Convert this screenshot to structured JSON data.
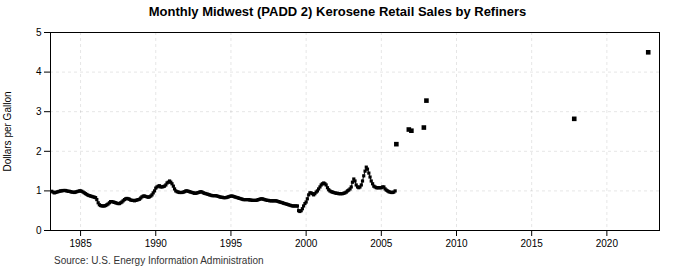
{
  "chart_data": {
    "type": "line",
    "title": "Monthly Midwest (PADD 2) Kerosene Retail Sales by Refiners",
    "ylabel": "Dollars per Gallon",
    "annotation": "Source: U.S. Energy Information Administration",
    "xlim": [
      1983.0,
      2023.5
    ],
    "ylim": [
      0,
      5
    ],
    "xticks": [
      1985,
      1990,
      1995,
      2000,
      2005,
      2010,
      2015,
      2020
    ],
    "yticks": [
      0,
      1,
      2,
      3,
      4,
      5
    ],
    "grid": true,
    "series": [
      {
        "type": "line",
        "marker": "square",
        "line_style": "solid",
        "x": [
          1983.08,
          1983.17,
          1983.25,
          1983.33,
          1983.42,
          1983.5,
          1983.58,
          1983.67,
          1983.75,
          1983.83,
          1983.92,
          1984.0,
          1984.08,
          1984.17,
          1984.25,
          1984.33,
          1984.42,
          1984.5,
          1984.58,
          1984.67,
          1984.75,
          1984.83,
          1984.92,
          1985.0,
          1985.08,
          1985.17,
          1985.25,
          1985.33,
          1985.42,
          1985.5,
          1985.58,
          1985.67,
          1985.75,
          1985.83,
          1985.92,
          1986.0,
          1986.08,
          1986.17,
          1986.25,
          1986.33,
          1986.42,
          1986.5,
          1986.58,
          1986.67,
          1986.75,
          1986.83,
          1986.92,
          1987.0,
          1987.08,
          1987.17,
          1987.25,
          1987.33,
          1987.42,
          1987.5,
          1987.58,
          1987.67,
          1987.75,
          1987.83,
          1987.92,
          1988.0,
          1988.08,
          1988.17,
          1988.25,
          1988.33,
          1988.42,
          1988.5,
          1988.58,
          1988.67,
          1988.75,
          1988.83,
          1988.92,
          1989.0,
          1989.08,
          1989.17,
          1989.25,
          1989.33,
          1989.42,
          1989.5,
          1989.58,
          1989.67,
          1989.75,
          1989.83,
          1989.92,
          1990.0,
          1990.08,
          1990.17,
          1990.25,
          1990.33,
          1990.42,
          1990.5,
          1990.58,
          1990.67,
          1990.75,
          1990.83,
          1990.92,
          1991.0,
          1991.08,
          1991.17,
          1991.25,
          1991.33,
          1991.42,
          1991.5,
          1991.58,
          1991.67,
          1991.75,
          1991.83,
          1991.92,
          1992.0,
          1992.08,
          1992.17,
          1992.25,
          1992.33,
          1992.42,
          1992.5,
          1992.58,
          1992.67,
          1992.75,
          1992.83,
          1992.92,
          1993.0,
          1993.08,
          1993.17,
          1993.25,
          1993.33,
          1993.42,
          1993.5,
          1993.58,
          1993.67,
          1993.75,
          1993.83,
          1993.92,
          1994.0,
          1994.08,
          1994.17,
          1994.25,
          1994.33,
          1994.42,
          1994.5,
          1994.58,
          1994.67,
          1994.75,
          1994.83,
          1994.92,
          1995.0,
          1995.08,
          1995.17,
          1995.25,
          1995.33,
          1995.42,
          1995.5,
          1995.58,
          1995.67,
          1995.75,
          1995.83,
          1995.92,
          1996.0,
          1996.08,
          1996.17,
          1996.25,
          1996.33,
          1996.42,
          1996.5,
          1996.58,
          1996.67,
          1996.75,
          1996.83,
          1996.92,
          1997.0,
          1997.08,
          1997.17,
          1997.25,
          1997.33,
          1997.42,
          1997.5,
          1997.58,
          1997.67,
          1997.75,
          1997.83,
          1997.92,
          1998.0,
          1998.08,
          1998.17,
          1998.25,
          1998.33,
          1998.42,
          1998.5,
          1998.58,
          1998.67,
          1998.75,
          1998.83,
          1998.92,
          1999.0,
          1999.08,
          1999.17,
          1999.25,
          1999.33,
          1999.42,
          1999.5,
          1999.58,
          1999.67,
          1999.75,
          1999.83,
          1999.92,
          2000.0,
          2000.08,
          2000.17,
          2000.25,
          2000.33,
          2000.42,
          2000.5,
          2000.58,
          2000.67,
          2000.75,
          2000.83,
          2000.92,
          2001.0,
          2001.08,
          2001.17,
          2001.25,
          2001.33,
          2001.42,
          2001.5,
          2001.58,
          2001.67,
          2001.75,
          2001.83,
          2001.92,
          2002.0,
          2002.08,
          2002.17,
          2002.25,
          2002.33,
          2002.42,
          2002.5,
          2002.58,
          2002.67,
          2002.75,
          2002.83,
          2002.92,
          2003.0,
          2003.08,
          2003.17,
          2003.25,
          2003.33,
          2003.42,
          2003.5,
          2003.58,
          2003.67,
          2003.75,
          2003.83,
          2003.92,
          2004.0,
          2004.08,
          2004.17,
          2004.25,
          2004.33,
          2004.42,
          2004.5,
          2004.58,
          2004.67,
          2004.75,
          2004.83,
          2004.92,
          2005.0,
          2005.08,
          2005.17,
          2005.25,
          2005.33,
          2005.42,
          2005.5,
          2005.58,
          2005.67,
          2005.75,
          2005.83,
          2005.92
        ],
        "values": [
          0.99,
          0.97,
          0.95,
          0.96,
          0.97,
          0.98,
          0.99,
          1.0,
          1.0,
          1.01,
          1.01,
          1.01,
          1.0,
          0.99,
          0.99,
          0.98,
          0.97,
          0.97,
          0.96,
          0.97,
          0.98,
          0.99,
          1.0,
          1.0,
          0.99,
          0.97,
          0.95,
          0.93,
          0.91,
          0.89,
          0.88,
          0.87,
          0.86,
          0.85,
          0.84,
          0.83,
          0.78,
          0.7,
          0.65,
          0.63,
          0.62,
          0.62,
          0.62,
          0.63,
          0.65,
          0.67,
          0.7,
          0.73,
          0.73,
          0.72,
          0.71,
          0.7,
          0.69,
          0.68,
          0.68,
          0.7,
          0.72,
          0.75,
          0.78,
          0.8,
          0.81,
          0.8,
          0.79,
          0.77,
          0.76,
          0.76,
          0.75,
          0.76,
          0.77,
          0.78,
          0.79,
          0.82,
          0.85,
          0.87,
          0.87,
          0.86,
          0.85,
          0.84,
          0.85,
          0.87,
          0.9,
          0.95,
          1.0,
          1.07,
          1.1,
          1.12,
          1.13,
          1.1,
          1.1,
          1.11,
          1.12,
          1.15,
          1.2,
          1.22,
          1.25,
          1.22,
          1.18,
          1.12,
          1.05,
          1.0,
          0.98,
          0.97,
          0.96,
          0.96,
          0.96,
          0.97,
          0.98,
          1.0,
          1.0,
          0.99,
          0.98,
          0.97,
          0.96,
          0.95,
          0.94,
          0.94,
          0.95,
          0.96,
          0.97,
          0.98,
          0.97,
          0.95,
          0.94,
          0.93,
          0.92,
          0.91,
          0.9,
          0.89,
          0.88,
          0.88,
          0.88,
          0.88,
          0.87,
          0.86,
          0.85,
          0.84,
          0.84,
          0.83,
          0.83,
          0.83,
          0.84,
          0.85,
          0.86,
          0.87,
          0.87,
          0.86,
          0.85,
          0.84,
          0.83,
          0.82,
          0.81,
          0.8,
          0.79,
          0.78,
          0.78,
          0.78,
          0.78,
          0.78,
          0.77,
          0.77,
          0.76,
          0.76,
          0.76,
          0.76,
          0.77,
          0.78,
          0.79,
          0.8,
          0.8,
          0.79,
          0.78,
          0.77,
          0.76,
          0.76,
          0.75,
          0.75,
          0.75,
          0.75,
          0.75,
          0.75,
          0.74,
          0.73,
          0.72,
          0.71,
          0.7,
          0.69,
          0.68,
          0.67,
          0.66,
          0.65,
          0.64,
          0.63,
          0.62,
          0.62,
          0.62,
          0.62,
          0.62,
          0.5,
          0.48,
          0.5,
          0.55,
          0.62,
          0.68,
          0.72,
          0.8,
          0.9,
          0.95,
          0.95,
          0.93,
          0.9,
          0.93,
          0.97,
          1.0,
          1.05,
          1.1,
          1.15,
          1.18,
          1.2,
          1.18,
          1.15,
          1.08,
          1.03,
          1.0,
          0.98,
          0.97,
          0.96,
          0.95,
          0.94,
          0.94,
          0.93,
          0.93,
          0.93,
          0.93,
          0.94,
          0.95,
          0.97,
          1.0,
          1.02,
          1.05,
          1.1,
          1.22,
          1.3,
          1.25,
          1.15,
          1.1,
          1.08,
          1.1,
          1.15,
          1.25,
          1.38,
          1.5,
          1.6,
          1.55,
          1.45,
          1.35,
          1.25,
          1.18,
          1.12,
          1.1,
          1.08,
          1.08,
          1.08,
          1.08,
          1.08,
          1.1,
          1.1,
          1.05,
          1.02,
          1.0,
          0.98,
          0.97,
          0.96,
          0.96,
          0.97,
          1.0
        ]
      },
      {
        "type": "scatter",
        "marker": "square",
        "x": [
          2006.0,
          2006.83,
          2007.0,
          2007.83,
          2008.0,
          2017.83,
          2022.75
        ],
        "values": [
          2.18,
          2.55,
          2.52,
          2.6,
          3.28,
          2.82,
          4.5
        ]
      }
    ]
  }
}
